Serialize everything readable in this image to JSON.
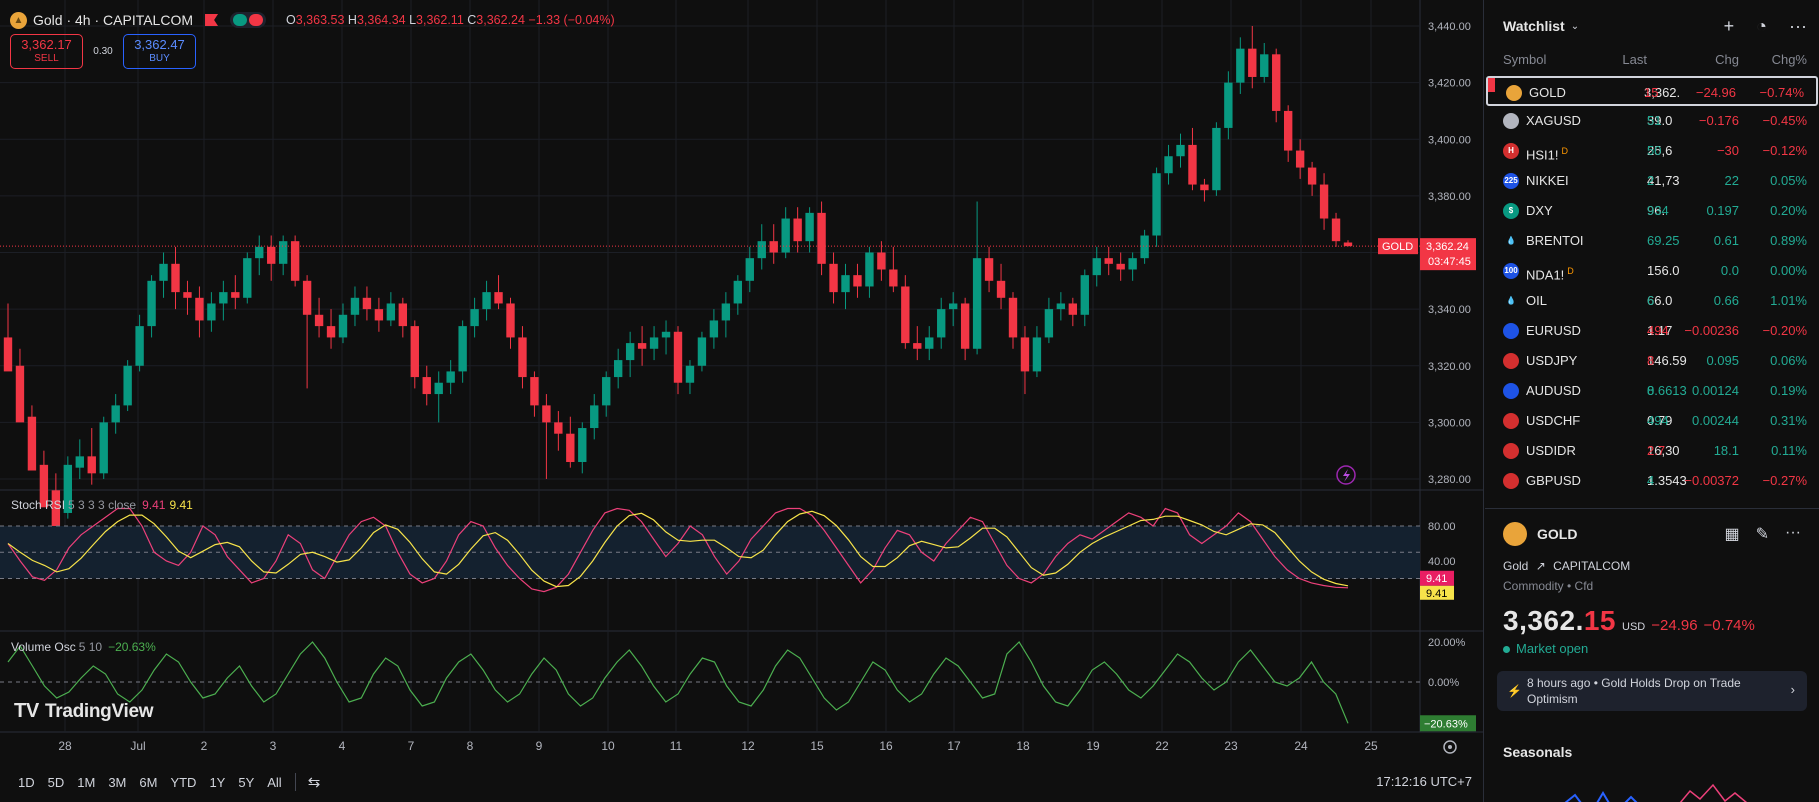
{
  "header": {
    "symbol_title": "Gold · 4h · CAPITALCOM",
    "ohlc": {
      "o_label": "O",
      "o": "3,363.53",
      "h_label": "H",
      "h": "3,364.34",
      "l_label": "L",
      "l": "3,362.11",
      "c_label": "C",
      "c": "3,362.24",
      "change": "−1.33 (−0.04%)"
    }
  },
  "trade": {
    "sell_price": "3,362.17",
    "sell_label": "SELL",
    "spread": "0.30",
    "buy_price": "3,362.47",
    "buy_label": "BUY"
  },
  "price_axis": {
    "ticks": [
      "3,440.00",
      "3,420.00",
      "3,400.00",
      "3,380.00",
      "3,360.00",
      "3,340.00",
      "3,320.00",
      "3,300.00",
      "3,280.00"
    ],
    "current_symbol": "GOLD",
    "current_price": "3,362.24",
    "countdown": "03:47:45"
  },
  "time_axis": {
    "ticks": [
      "28",
      "Jul",
      "2",
      "3",
      "4",
      "7",
      "8",
      "9",
      "10",
      "11",
      "12",
      "15",
      "16",
      "17",
      "18",
      "19",
      "22",
      "23",
      "24",
      "25"
    ]
  },
  "stoch_rsi": {
    "name": "Stoch RSI",
    "params": "5 3 3 3 close",
    "k": "9.41",
    "d": "9.41",
    "axis_ticks": [
      "80.00",
      "40.00"
    ]
  },
  "volume_osc": {
    "name": "Volume Osc",
    "params": "5 10",
    "value": "−20.63%",
    "axis_ticks": [
      "20.00%",
      "0.00%"
    ],
    "badge": "−20.63%"
  },
  "branding": {
    "logo_text": "TradingView"
  },
  "bottom_bar": {
    "ranges": [
      "1D",
      "5D",
      "1M",
      "3M",
      "6M",
      "YTD",
      "1Y",
      "5Y",
      "All"
    ],
    "clock": "17:12:16 UTC+7"
  },
  "watchlist": {
    "title": "Watchlist",
    "columns": {
      "symbol": "Symbol",
      "last": "Last",
      "chg": "Chg",
      "pct": "Chg%"
    },
    "rows": [
      {
        "symbol": "GOLD",
        "last_main": "3,362.",
        "last_tail": "15",
        "tail_dir": "lo",
        "chg": "−24.96",
        "pct": "−0.74%",
        "dir": "neg",
        "icon_color": "#e9a43a",
        "icon_text": "",
        "badge": ""
      },
      {
        "symbol": "XAGUSD",
        "last_main": "39.0",
        "last_tail": "51",
        "tail_dir": "hi",
        "chg": "−0.176",
        "pct": "−0.45%",
        "dir": "neg",
        "icon_color": "#b2b5be",
        "icon_text": "",
        "badge": ""
      },
      {
        "symbol": "HSI1!",
        "last_main": "25,6",
        "last_tail": "50",
        "tail_dir": "hi",
        "chg": "−30",
        "pct": "−0.12%",
        "dir": "neg",
        "icon_color": "#d32f2f",
        "icon_text": "H",
        "badge": "D"
      },
      {
        "symbol": "NIKKEI",
        "last_main": "41,73",
        "last_tail": "2",
        "tail_dir": "hi",
        "chg": "22",
        "pct": "0.05%",
        "dir": "pos",
        "icon_color": "#1e53e5",
        "icon_text": "225",
        "badge": ""
      },
      {
        "symbol": "DXY",
        "last_main": "96.",
        "last_tail": "934",
        "tail_dir": "hi",
        "chg": "0.197",
        "pct": "0.20%",
        "dir": "pos",
        "icon_color": "#089981",
        "icon_text": "$",
        "badge": ""
      },
      {
        "symbol": "BRENTOI",
        "last_main": "69.25",
        "last_tail": "",
        "tail_dir": "hi",
        "chg": "0.61",
        "pct": "0.89%",
        "dir": "pos",
        "icon_color": "#0f0f0f",
        "icon_text": "💧",
        "badge": "",
        "last_color": "pos"
      },
      {
        "symbol": "NDA1!",
        "last_main": "156.0",
        "last_tail": "",
        "tail_dir": "hi",
        "chg": "0.0",
        "pct": "0.00%",
        "dir": "pos",
        "icon_color": "#1e53e5",
        "icon_text": "100",
        "badge": "D"
      },
      {
        "symbol": "OIL",
        "last_main": "66.0",
        "last_tail": "6",
        "tail_dir": "hi",
        "chg": "0.66",
        "pct": "1.01%",
        "dir": "pos",
        "icon_color": "#0f0f0f",
        "icon_text": "💧",
        "badge": ""
      },
      {
        "symbol": "EURUSD",
        "last_main": "1.17",
        "last_tail": "494",
        "tail_dir": "lo",
        "chg": "−0.00236",
        "pct": "−0.20%",
        "dir": "neg",
        "icon_color": "#1e53e5",
        "icon_text": "",
        "badge": ""
      },
      {
        "symbol": "USDJPY",
        "last_main": "146.59",
        "last_tail": "8",
        "tail_dir": "lo",
        "chg": "0.095",
        "pct": "0.06%",
        "dir": "pos",
        "icon_color": "#d32f2f",
        "icon_text": "",
        "badge": ""
      },
      {
        "symbol": "AUDUSD",
        "last_main": "0.6613",
        "last_tail": "8",
        "tail_dir": "hi",
        "chg": "0.00124",
        "pct": "0.19%",
        "dir": "pos",
        "icon_color": "#1e53e5",
        "icon_text": "",
        "badge": "",
        "last_color": "pos"
      },
      {
        "symbol": "USDCHF",
        "last_main": "0.79",
        "last_tail": "494",
        "tail_dir": "hi",
        "chg": "0.00244",
        "pct": "0.31%",
        "dir": "pos",
        "icon_color": "#d32f2f",
        "icon_text": "",
        "badge": ""
      },
      {
        "symbol": "USDIDR",
        "last_main": "16,30",
        "last_tail": "2.7",
        "tail_dir": "lo",
        "chg": "18.1",
        "pct": "0.11%",
        "dir": "pos",
        "icon_color": "#d32f2f",
        "icon_text": "",
        "badge": ""
      },
      {
        "symbol": "GBPUSD",
        "last_main": "1.3543",
        "last_tail": "4",
        "tail_dir": "hi",
        "chg": "−0.00372",
        "pct": "−0.27%",
        "dir": "neg",
        "icon_color": "#d32f2f",
        "icon_text": "",
        "badge": ""
      }
    ]
  },
  "detail": {
    "name": "GOLD",
    "subtitle_name": "Gold",
    "exchange": "CAPITALCOM",
    "category": "Commodity • Cfd",
    "price_main": "3,362.",
    "price_tail": "15",
    "currency": "USD",
    "change": "−24.96",
    "change_pct": "−0.74%",
    "market_status": "Market open",
    "news_time": "8 hours ago",
    "news_headline": "Gold Holds Drop on Trade Optimism",
    "seasonals_label": "Seasonals"
  },
  "colors": {
    "up": "#089981",
    "down": "#f23645",
    "stoch_k": "#ec407a",
    "stoch_d": "#f7e34a",
    "vol_osc": "#4caf50"
  }
}
